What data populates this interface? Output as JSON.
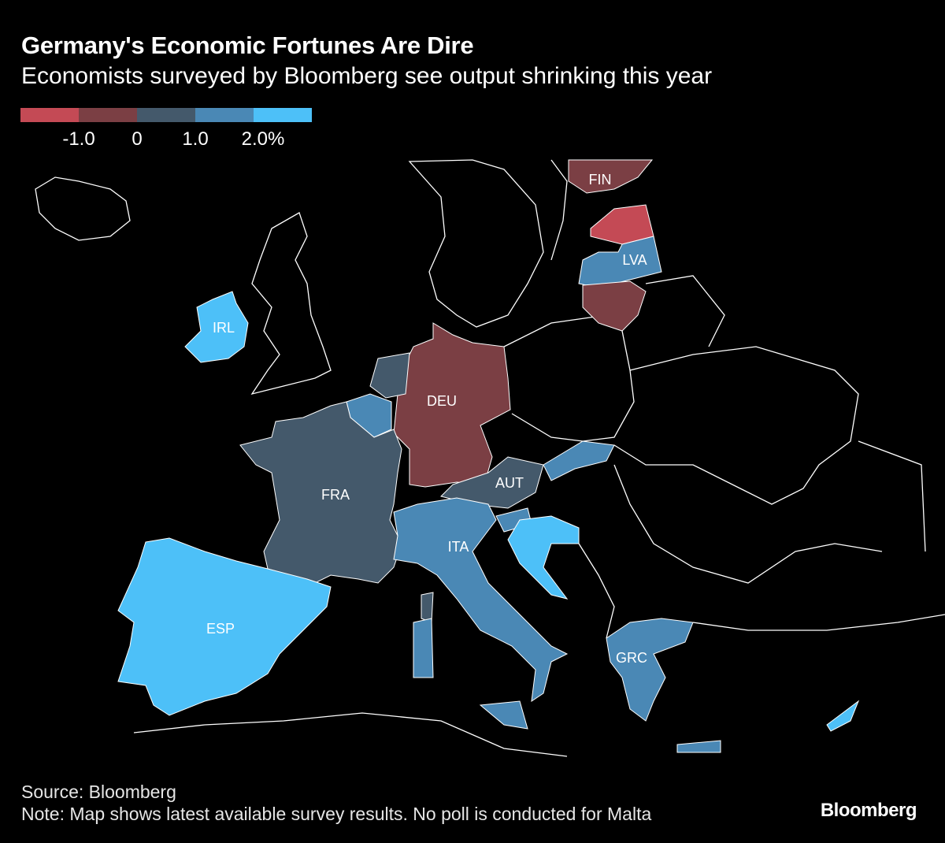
{
  "header": {
    "title": "Germany's Economic Fortunes Are Dire",
    "subtitle": "Economists surveyed by Bloomberg see output shrinking this year"
  },
  "legend": {
    "colors": [
      "#c44a55",
      "#7b3f44",
      "#44596b",
      "#4a88b5",
      "#4dc0f8"
    ],
    "ticks": [
      "-1.0",
      "0",
      "1.0",
      "2.0%"
    ]
  },
  "chart_data": {
    "type": "choropleth",
    "regions": [
      {
        "label": "FIN",
        "bin": 1
      },
      {
        "label": "",
        "bin": 0
      },
      {
        "label": "LVA",
        "bin": 3
      },
      {
        "label": "",
        "bin": 1
      },
      {
        "label": "IRL",
        "bin": 4
      },
      {
        "label": "DEU",
        "bin": 1
      },
      {
        "label": "",
        "bin": 2
      },
      {
        "label": "",
        "bin": 3
      },
      {
        "label": "FRA",
        "bin": 2
      },
      {
        "label": "AUT",
        "bin": 2
      },
      {
        "label": "",
        "bin": 3
      },
      {
        "label": "ITA",
        "bin": 3
      },
      {
        "label": "",
        "bin": 3
      },
      {
        "label": "",
        "bin": 4
      },
      {
        "label": "ESP",
        "bin": 4
      },
      {
        "label": "GRC",
        "bin": 3
      },
      {
        "label": "",
        "bin": 4
      }
    ]
  },
  "footer": {
    "source": "Source: Bloomberg",
    "note": "Note: Map shows latest available survey results. No poll is conducted for Malta",
    "logo": "Bloomberg"
  }
}
